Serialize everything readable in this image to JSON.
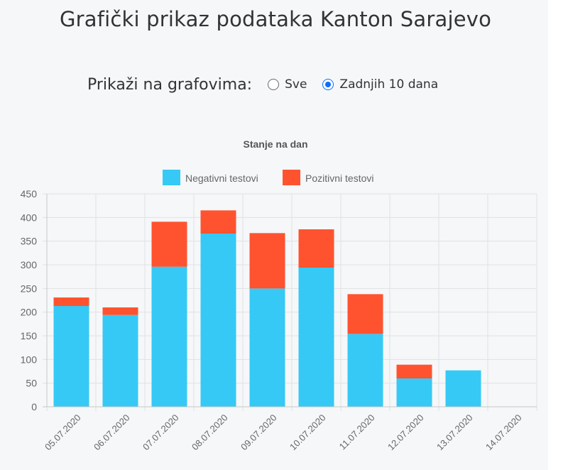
{
  "page": {
    "title": "Grafički prikaz podataka Kanton Sarajevo"
  },
  "filter": {
    "label": "Prikaži na grafovima:",
    "options": [
      {
        "label": "Sve",
        "checked": false
      },
      {
        "label": "Zadnjih 10 dana",
        "checked": true
      }
    ]
  },
  "chart_data": {
    "type": "bar",
    "stacked": true,
    "title": "Stanje na dan",
    "xlabel": "",
    "ylabel": "",
    "ylim": [
      0,
      450
    ],
    "yticks": [
      0,
      50,
      100,
      150,
      200,
      250,
      300,
      350,
      400,
      450
    ],
    "grid": true,
    "legend_position": "top-center",
    "categories": [
      "05.07.2020",
      "06.07.2020",
      "07.07.2020",
      "08.07.2020",
      "09.07.2020",
      "10.07.2020",
      "11.07.2020",
      "12.07.2020",
      "13.07.2020",
      "14.07.2020"
    ],
    "series": [
      {
        "name": "Negativni testovi",
        "color": "#36c9f5",
        "values": [
          213,
          194,
          296,
          366,
          250,
          294,
          154,
          60,
          77,
          0
        ]
      },
      {
        "name": "Pozitivni testovi",
        "color": "#ff5330",
        "values": [
          18,
          16,
          95,
          49,
          117,
          81,
          84,
          29,
          0,
          0
        ]
      }
    ]
  }
}
